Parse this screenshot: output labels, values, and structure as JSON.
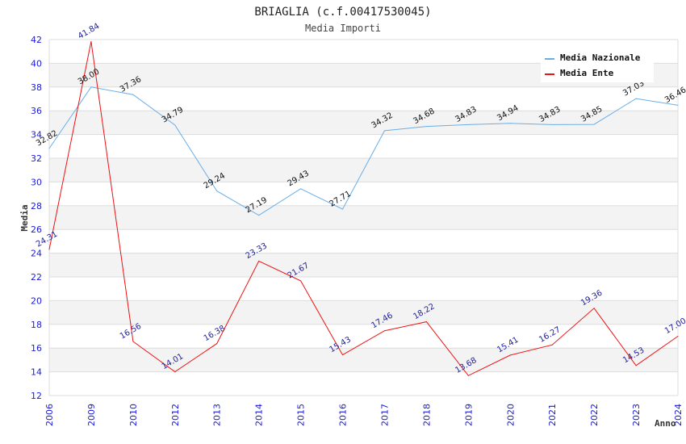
{
  "chart_data": {
    "type": "line",
    "title": "BRIAGLIA (c.f.00417530045)",
    "subtitle": "Media Importi",
    "xlabel": "Anno",
    "ylabel": "Media",
    "ylim": [
      12,
      42
    ],
    "yticks": [
      "12",
      "14",
      "16",
      "18",
      "20",
      "22",
      "24",
      "26",
      "28",
      "30",
      "32",
      "34",
      "36",
      "38",
      "40",
      "42"
    ],
    "categories": [
      "2006",
      "2009",
      "2010",
      "2012",
      "2013",
      "2014",
      "2015",
      "2016",
      "2017",
      "2018",
      "2019",
      "2020",
      "2021",
      "2022",
      "2023",
      "2024"
    ],
    "grid": true,
    "legend_position": "top-right",
    "series": [
      {
        "name": "Media Nazionale",
        "color": "#6aaee8",
        "values": [
          32.82,
          38.0,
          37.36,
          34.79,
          29.24,
          27.19,
          29.43,
          27.71,
          34.32,
          34.68,
          34.83,
          34.94,
          34.83,
          34.85,
          37.03,
          36.46
        ],
        "labels": [
          "32.82",
          "38.00",
          "37.36",
          "34.79",
          "29.24",
          "27.19",
          "29.43",
          "27.71",
          "34.32",
          "34.68",
          "34.83",
          "34.94",
          "34.83",
          "34.85",
          "37.03",
          "36.46"
        ]
      },
      {
        "name": "Media Ente",
        "color": "#ee1111",
        "values": [
          24.31,
          41.84,
          16.56,
          14.01,
          16.38,
          23.33,
          21.67,
          15.43,
          17.46,
          18.22,
          13.68,
          15.41,
          16.27,
          19.36,
          14.53,
          17.0
        ],
        "labels": [
          "24.31",
          "41.84",
          "16.56",
          "14.01",
          "16.38",
          "23.33",
          "21.67",
          "15.43",
          "17.46",
          "18.22",
          "13.68",
          "15.41",
          "16.27",
          "19.36",
          "14.53",
          "17.00"
        ]
      }
    ]
  }
}
